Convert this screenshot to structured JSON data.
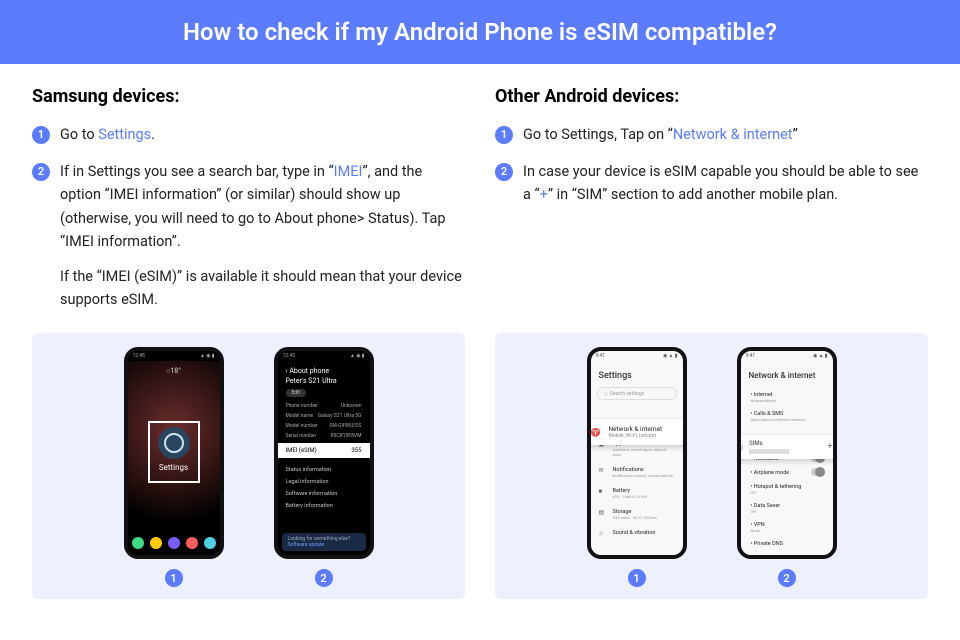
{
  "header": {
    "title": "How to check if my Android Phone is eSIM compatible?"
  },
  "colors": {
    "accent": "#5b7cff",
    "panel_bg": "#ecf0ff",
    "text": "#222222"
  },
  "left": {
    "heading": "Samsung devices:",
    "steps": [
      {
        "num": "1",
        "text_pre": "Go to ",
        "link": "Settings",
        "text_post": "."
      },
      {
        "num": "2",
        "text_pre": "If in Settings you see a search bar, type in “",
        "link": "IMEI",
        "text_post": "”, and the option “IMEI information” (or similar) should show up (otherwise, you will need to go to About phone> Status). Tap “IMEI information”.",
        "para2": "If the “IMEI (eSIM)” is available it should mean that your device supports eSIM."
      }
    ],
    "shots": {
      "shot1": {
        "label": "1",
        "clock_text": "○18°",
        "settings_label": "Settings",
        "dock_colors": [
          "#3ddc84",
          "#ffcc00",
          "#7b5cff",
          "#ff5c5c",
          "#4dd0e1"
        ]
      },
      "shot2": {
        "label": "2",
        "back": "‹  About phone",
        "device_name": "Peter's S21 Ultra",
        "edit": "Edit",
        "rows": [
          [
            "Phone number",
            "Unknown"
          ],
          [
            "Model name",
            "Galaxy S21 Ultra 5G"
          ],
          [
            "Model number",
            "SM-G998U/DS"
          ],
          [
            "Serial number",
            "R5CR10E8VM"
          ]
        ],
        "highlight_label": "IMEI (eSIM)",
        "highlight_value_prefix": "355",
        "list": [
          "Status information",
          "Legal information",
          "Software information",
          "Battery information"
        ],
        "footer_line1": "Looking for something else?",
        "footer_line2": "Software update"
      }
    }
  },
  "right": {
    "heading": "Other Android devices:",
    "steps": [
      {
        "num": "1",
        "text_pre": "Go to Settings, Tap on “",
        "link": "Network & internet",
        "text_post": "”"
      },
      {
        "num": "2",
        "text_pre": "In case your device is eSIM capable you should be able to see a “",
        "link": "+",
        "text_post": "” in “SIM” section to add another mobile plan."
      }
    ],
    "shots": {
      "shot1": {
        "label": "1",
        "title": "Settings",
        "search_placeholder": "ⓢ Search settings",
        "popup": {
          "icon": "♈",
          "title": "Network & internet",
          "sub": "Mobile, Wi-Fi, hotspot"
        },
        "items": [
          {
            "icon": "▣",
            "title": "Apps",
            "sub": "Assistant, recent apps, default apps"
          },
          {
            "icon": "✉",
            "title": "Notifications",
            "sub": "Notification history, conversations"
          },
          {
            "icon": "■",
            "title": "Battery",
            "sub": "63% - Until 4:15 PM"
          },
          {
            "icon": "▤",
            "title": "Storage",
            "sub": "54% used - 58.97 GB free"
          },
          {
            "icon": "♫",
            "title": "Sound & vibration",
            "sub": ""
          }
        ]
      },
      "shot2": {
        "label": "2",
        "title": "Network & internet",
        "items_top": [
          {
            "title": "Internet",
            "sub": "NetworkName"
          },
          {
            "title": "Calls & SMS",
            "sub": "Data, phone, preferred network"
          }
        ],
        "popup": {
          "icon": "▢",
          "title": "SIMs",
          "sub_label": "RedteaGO",
          "plus": "+"
        },
        "items_bottom": [
          {
            "title": "RedteaGO",
            "toggle": true
          },
          {
            "title": "Airplane mode",
            "toggle": true
          },
          {
            "title": "Hotspot & tethering",
            "sub": "Off"
          },
          {
            "title": "Data Saver",
            "sub": "Off"
          },
          {
            "title": "VPN",
            "sub": "None"
          },
          {
            "title": "Private DNS",
            "sub": ""
          }
        ]
      }
    }
  }
}
